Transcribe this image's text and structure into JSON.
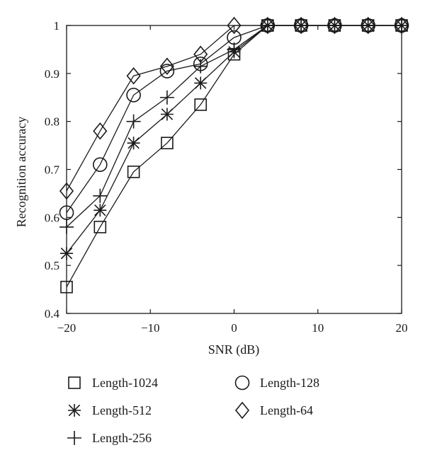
{
  "chart_data": {
    "type": "line",
    "xlabel": "SNR (dB)",
    "ylabel": "Recognition accuracy",
    "xlim": [
      -20,
      20
    ],
    "ylim": [
      0.4,
      1.0
    ],
    "x_ticks": [
      -20,
      -10,
      0,
      10,
      20
    ],
    "x_tick_labels": [
      "−20",
      "−10",
      "0",
      "10",
      "20"
    ],
    "y_ticks": [
      0.4,
      0.5,
      0.6,
      0.7,
      0.8,
      0.9,
      1.0
    ],
    "y_tick_labels": [
      "0.4",
      "0.5",
      "0.6",
      "0.7",
      "0.8",
      "0.9",
      "1"
    ],
    "grid": false,
    "legend_position": "bottom",
    "x": [
      -20,
      -16,
      -12,
      -8,
      -4,
      0,
      4,
      8,
      12,
      16,
      20
    ],
    "series": [
      {
        "name": "Length-1024",
        "marker": "square",
        "values": [
          0.455,
          0.58,
          0.695,
          0.755,
          0.835,
          0.94,
          1.0,
          1.0,
          1.0,
          1.0,
          1.0
        ]
      },
      {
        "name": "Length-512",
        "marker": "asterisk",
        "values": [
          0.525,
          0.615,
          0.755,
          0.815,
          0.88,
          0.945,
          1.0,
          1.0,
          1.0,
          1.0,
          1.0
        ]
      },
      {
        "name": "Length-256",
        "marker": "plus",
        "values": [
          0.58,
          0.645,
          0.8,
          0.85,
          0.915,
          0.95,
          1.0,
          1.0,
          1.0,
          1.0,
          1.0
        ]
      },
      {
        "name": "Length-128",
        "marker": "circle",
        "values": [
          0.61,
          0.71,
          0.855,
          0.905,
          0.92,
          0.975,
          1.0,
          1.0,
          1.0,
          1.0,
          1.0
        ]
      },
      {
        "name": "Length-64",
        "marker": "diamond",
        "values": [
          0.655,
          0.78,
          0.895,
          0.915,
          0.94,
          1.0,
          1.0,
          1.0,
          1.0,
          1.0,
          1.0
        ]
      }
    ]
  }
}
